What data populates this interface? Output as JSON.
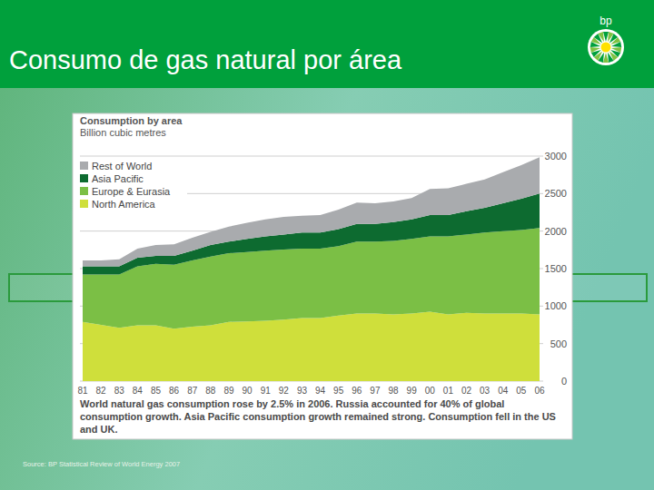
{
  "slide": {
    "title": "Consumo de gas natural por área",
    "logo": "bp",
    "source": "Source: BP Statistical Review of World Energy 2007"
  },
  "chart_data": {
    "type": "area",
    "stacked": true,
    "title": "Consumption by area",
    "subtitle": "Billion cubic metres",
    "annotation": "World natural gas consumption rose by 2.5% in 2006. Russia accounted for 40% of global consumption growth. Asia Pacific consumption growth remained strong. Consumption fell in the US and UK.",
    "categories": [
      "81",
      "82",
      "83",
      "84",
      "85",
      "86",
      "87",
      "88",
      "89",
      "90",
      "91",
      "92",
      "93",
      "94",
      "95",
      "96",
      "97",
      "98",
      "99",
      "00",
      "01",
      "02",
      "03",
      "04",
      "05",
      "06"
    ],
    "series": [
      {
        "name": "North America",
        "color": "#cfdf3b",
        "values": [
          790,
          750,
          710,
          745,
          745,
          700,
          725,
          745,
          790,
          795,
          805,
          820,
          840,
          840,
          875,
          900,
          900,
          890,
          900,
          925,
          890,
          910,
          900,
          900,
          900,
          890
        ]
      },
      {
        "name": "Europe & Eurasia",
        "color": "#7bbf45",
        "values": [
          630,
          670,
          710,
          785,
          820,
          850,
          885,
          915,
          915,
          925,
          935,
          935,
          925,
          925,
          925,
          960,
          960,
          980,
          995,
          1005,
          1040,
          1045,
          1080,
          1100,
          1115,
          1150
        ]
      },
      {
        "name": "Asia Pacific",
        "color": "#0d6b30",
        "values": [
          110,
          110,
          110,
          115,
          105,
          120,
          130,
          155,
          155,
          175,
          190,
          200,
          215,
          215,
          225,
          235,
          235,
          250,
          260,
          285,
          285,
          310,
          330,
          370,
          415,
          460
        ]
      },
      {
        "name": "Rest of World",
        "color": "#a9abae",
        "values": [
          80,
          80,
          95,
          120,
          145,
          155,
          170,
          175,
          200,
          215,
          225,
          235,
          225,
          235,
          260,
          285,
          275,
          275,
          285,
          345,
          355,
          365,
          380,
          415,
          450,
          485
        ]
      }
    ],
    "ylim": [
      0,
      3000
    ],
    "yticks": [
      0,
      500,
      1000,
      1500,
      2000,
      2500,
      3000
    ],
    "grid": true,
    "legend": "top-left"
  }
}
